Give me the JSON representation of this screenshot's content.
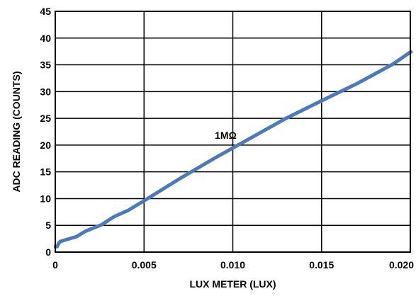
{
  "chart_data": {
    "type": "line",
    "title": "",
    "xlabel": "LUX METER (LUX)",
    "ylabel": "ADC READING (COUNTS)",
    "xlim": [
      0,
      0.02
    ],
    "ylim": [
      0,
      45
    ],
    "x_ticks": [
      0,
      0.005,
      0.01,
      0.015,
      0.02
    ],
    "x_tick_labels": [
      "0",
      "0.005",
      "0.010",
      "0.015",
      "0.020"
    ],
    "y_ticks": [
      0,
      5,
      10,
      15,
      20,
      25,
      30,
      35,
      40,
      45
    ],
    "y_tick_labels": [
      "0",
      "5",
      "10",
      "15",
      "20",
      "25",
      "30",
      "35",
      "40",
      "45"
    ],
    "grid": true,
    "line_color": "#4a7ab8",
    "series": [
      {
        "x": [
          -0.0002,
          0.0001,
          0.0002,
          0.0003,
          0.0005,
          0.0012,
          0.0017,
          0.0026,
          0.0033,
          0.0041,
          0.005,
          0.007,
          0.009,
          0.011,
          0.013,
          0.015,
          0.017,
          0.019,
          0.0201
        ],
        "y": [
          1.0,
          1.0,
          1.7,
          2.0,
          2.2,
          2.9,
          3.9,
          5.1,
          6.6,
          7.8,
          9.6,
          13.7,
          17.6,
          21.3,
          25.0,
          28.3,
          31.5,
          35.1,
          37.6
        ]
      }
    ],
    "annotations": [
      {
        "text": "1MΩ",
        "x": 0.0096,
        "y": 21.2
      }
    ]
  }
}
